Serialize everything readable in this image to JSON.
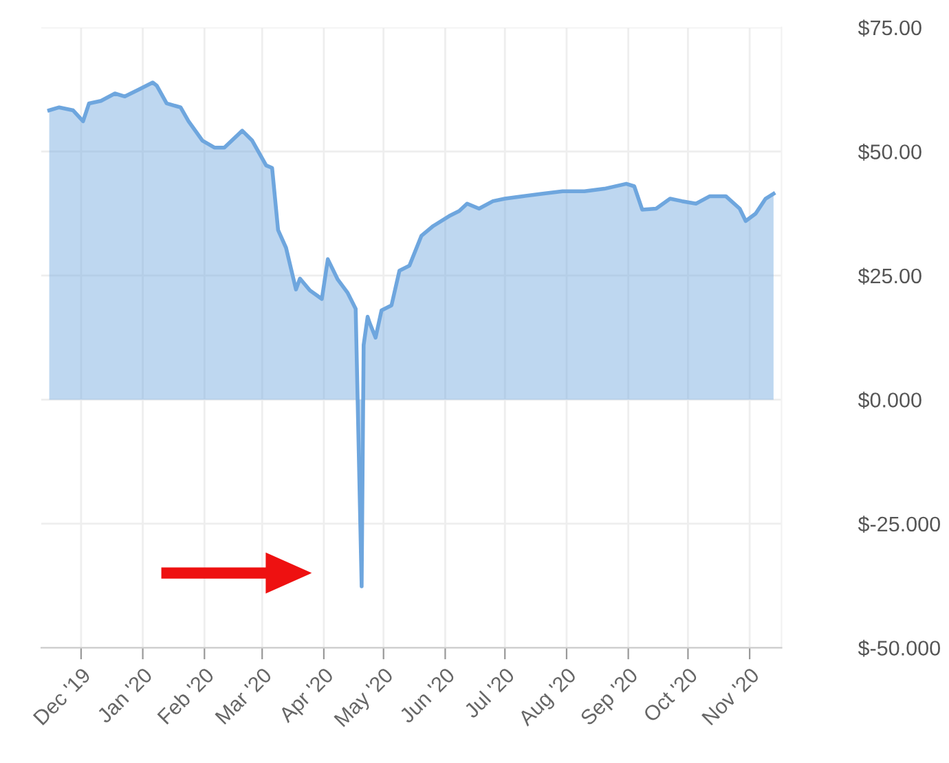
{
  "chart_data": {
    "type": "area",
    "x": [
      "2019-11-15",
      "2019-11-20",
      "2019-11-27",
      "2019-12-02",
      "2019-12-05",
      "2019-12-11",
      "2019-12-18",
      "2019-12-23",
      "2019-12-30",
      "2020-01-06",
      "2020-01-08",
      "2020-01-13",
      "2020-01-20",
      "2020-01-24",
      "2020-01-31",
      "2020-02-06",
      "2020-02-11",
      "2020-02-20",
      "2020-02-25",
      "2020-03-03",
      "2020-03-06",
      "2020-03-09",
      "2020-03-13",
      "2020-03-18",
      "2020-03-20",
      "2020-03-25",
      "2020-03-31",
      "2020-04-03",
      "2020-04-08",
      "2020-04-13",
      "2020-04-17",
      "2020-04-20",
      "2020-04-21",
      "2020-04-23",
      "2020-04-24",
      "2020-04-27",
      "2020-04-30",
      "2020-05-05",
      "2020-05-09",
      "2020-05-14",
      "2020-05-20",
      "2020-05-26",
      "2020-06-03",
      "2020-06-08",
      "2020-06-12",
      "2020-06-18",
      "2020-06-25",
      "2020-07-01",
      "2020-07-10",
      "2020-07-20",
      "2020-07-30",
      "2020-08-10",
      "2020-08-20",
      "2020-08-31",
      "2020-09-04",
      "2020-09-08",
      "2020-09-15",
      "2020-09-22",
      "2020-09-28",
      "2020-10-05",
      "2020-10-12",
      "2020-10-20",
      "2020-10-27",
      "2020-10-30",
      "2020-11-04",
      "2020-11-09",
      "2020-11-13"
    ],
    "series": [
      {
        "color": "#6ea6de",
        "values": [
          58.3,
          58.9,
          58.3,
          56.1,
          59.7,
          60.2,
          61.7,
          61.1,
          62.5,
          63.9,
          63.3,
          59.7,
          58.9,
          56.1,
          52.2,
          50.8,
          50.8,
          54.2,
          52.2,
          47.2,
          46.7,
          34.2,
          30.6,
          22.2,
          24.4,
          22.0,
          20.3,
          28.3,
          24.2,
          21.5,
          18.3,
          -37.6,
          11.0,
          16.7,
          15.5,
          12.5,
          18.0,
          19.0,
          26.0,
          27.0,
          33.0,
          35.0,
          37.0,
          38.0,
          39.5,
          38.5,
          40.0,
          40.5,
          41.0,
          41.5,
          42.0,
          42.0,
          42.5,
          43.5,
          43.0,
          38.3,
          38.5,
          40.5,
          40.0,
          39.5,
          41.0,
          41.0,
          38.5,
          36.0,
          37.5,
          40.5,
          41.5
        ]
      }
    ],
    "xlim": [
      "2019-11-11",
      "2020-11-17"
    ],
    "xticks": [
      {
        "value": "2019-12-01",
        "label": "Dec '19"
      },
      {
        "value": "2020-01-01",
        "label": "Jan '20"
      },
      {
        "value": "2020-02-01",
        "label": "Feb '20"
      },
      {
        "value": "2020-03-01",
        "label": "Mar '20"
      },
      {
        "value": "2020-04-01",
        "label": "Apr '20"
      },
      {
        "value": "2020-05-01",
        "label": "May '20"
      },
      {
        "value": "2020-06-01",
        "label": "Jun '20"
      },
      {
        "value": "2020-07-01",
        "label": "Jul '20"
      },
      {
        "value": "2020-08-01",
        "label": "Aug '20"
      },
      {
        "value": "2020-09-01",
        "label": "Sep '20"
      },
      {
        "value": "2020-10-01",
        "label": "Oct '20"
      },
      {
        "value": "2020-11-01",
        "label": "Nov '20"
      }
    ],
    "ylim": [
      -50,
      75
    ],
    "yticks": [
      {
        "value": 75,
        "label": "$75.00"
      },
      {
        "value": 50,
        "label": "$50.00"
      },
      {
        "value": 25,
        "label": "$25.00"
      },
      {
        "value": 0,
        "label": "$0.000"
      },
      {
        "value": -25,
        "label": "$-25.000"
      },
      {
        "value": -50,
        "label": "$-50.000"
      }
    ],
    "grid": true
  }
}
